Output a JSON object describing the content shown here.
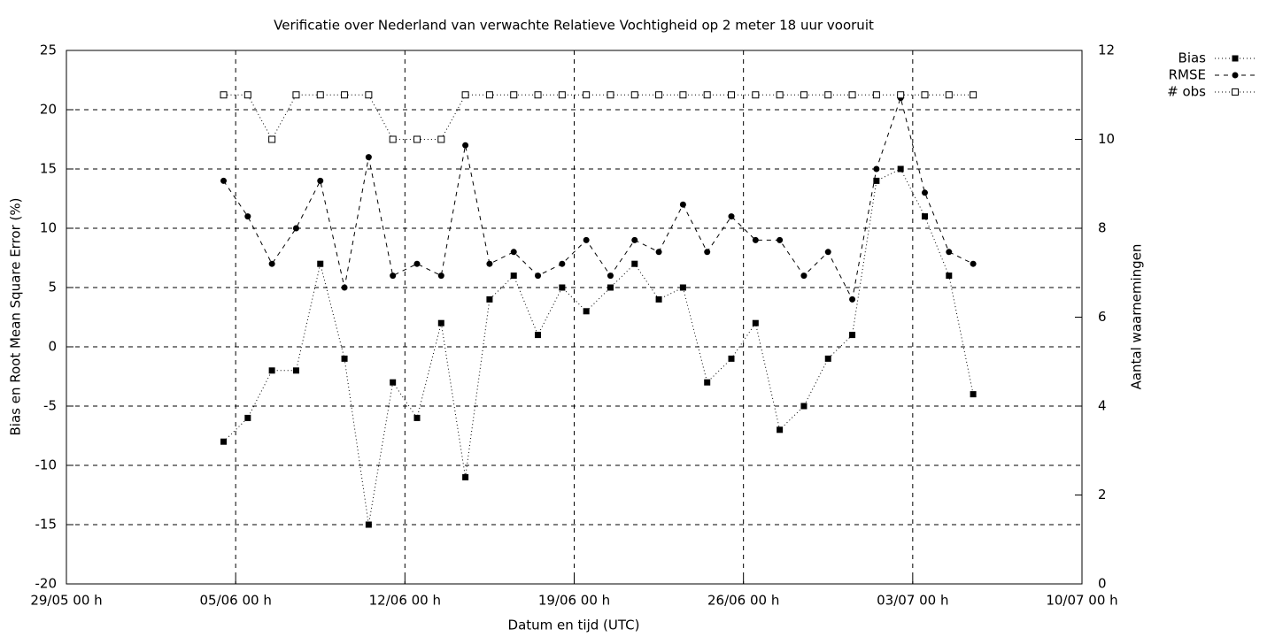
{
  "chart_data": {
    "type": "line",
    "title": "Verificatie over Nederland van verwachte Relatieve Vochtigheid op 2 meter 18 uur vooruit",
    "x_label": "Datum en tijd (UTC)",
    "y_label": "Bias en Root Mean Square Error (%)",
    "y2_label": "Aantal waarnemingen",
    "x": [
      "04/06 12 h",
      "05/06 12 h",
      "06/06 12 h",
      "07/06 12 h",
      "08/06 12 h",
      "09/06 12 h",
      "10/06 12 h",
      "11/06 12 h",
      "12/06 12 h",
      "13/06 12 h",
      "14/06 12 h",
      "15/06 12 h",
      "16/06 12 h",
      "17/06 12 h",
      "18/06 12 h",
      "19/06 12 h",
      "20/06 12 h",
      "21/06 12 h",
      "22/06 12 h",
      "23/06 12 h",
      "24/06 12 h",
      "25/06 12 h",
      "26/06 12 h",
      "27/06 12 h",
      "28/06 12 h",
      "29/06 12 h",
      "30/06 12 h",
      "01/07 12 h",
      "02/07 12 h",
      "03/07 12 h",
      "04/07 12 h",
      "05/07 12 h"
    ],
    "series": [
      {
        "name": "Bias",
        "color": "#000000",
        "line": "dotted",
        "marker": "filled-square",
        "values": [
          -8,
          -6,
          -2,
          -2,
          7,
          -1,
          -15,
          -3,
          -6,
          2,
          -11,
          4,
          6,
          1,
          5,
          3,
          5,
          7,
          4,
          5,
          -3,
          -1,
          2,
          -7,
          -5,
          -1,
          1,
          14,
          15,
          11,
          6,
          -4
        ]
      },
      {
        "name": "RMSE",
        "color": "#000000",
        "line": "dashed",
        "marker": "filled-circle",
        "values": [
          14,
          11,
          7,
          10,
          14,
          5,
          16,
          6,
          7,
          6,
          17,
          7,
          8,
          6,
          7,
          9,
          6,
          9,
          8,
          12,
          8,
          11,
          9,
          9,
          6,
          8,
          4,
          15,
          21,
          13,
          8,
          7
        ]
      },
      {
        "name": "# obs",
        "color": "#000000",
        "line": "dotted",
        "marker": "open-square",
        "axis": "y2",
        "values": [
          11,
          11,
          10,
          11,
          11,
          11,
          11,
          10,
          10,
          10,
          11,
          11,
          11,
          11,
          11,
          11,
          11,
          11,
          11,
          11,
          11,
          11,
          11,
          11,
          11,
          11,
          11,
          11,
          11,
          11,
          11,
          11
        ]
      }
    ],
    "xlim": [
      "29/05 00 h",
      "10/07 00 h"
    ],
    "xticks": [
      "29/05 00 h",
      "05/06 00 h",
      "12/06 00 h",
      "19/06 00 h",
      "26/06 00 h",
      "03/07 00 h",
      "10/07 00 h"
    ],
    "ylim": [
      -20,
      25
    ],
    "yticks": [
      -20,
      -15,
      -10,
      -5,
      0,
      5,
      10,
      15,
      20,
      25
    ],
    "y2lim": [
      0,
      12
    ],
    "y2ticks": [
      0,
      2,
      4,
      6,
      8,
      10,
      12
    ],
    "grid": true,
    "legend": "outside-top-right"
  }
}
